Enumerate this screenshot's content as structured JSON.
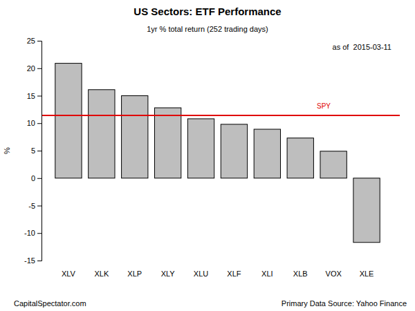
{
  "chart_data": {
    "type": "bar",
    "title": "US Sectors: ETF Performance",
    "subtitle": "1yr % total return (252 trading days)",
    "annotation": "as of  2015-03-11",
    "y_label": "%",
    "footer_left": "CapitalSpectator.com",
    "footer_right": "Primary Data Source: Yahoo Finance",
    "categories": [
      "XLV",
      "XLK",
      "XLP",
      "XLY",
      "XLU",
      "XLF",
      "XLI",
      "XLB",
      "VOX",
      "XLE"
    ],
    "values": [
      20.9,
      16.1,
      15.0,
      12.8,
      10.8,
      9.8,
      8.9,
      7.3,
      4.9,
      -11.7
    ],
    "color": "#bebebe",
    "ylim": [
      -15,
      25
    ],
    "yticks": [
      -15,
      -10,
      -5,
      0,
      5,
      10,
      15,
      20,
      25
    ],
    "grid": false,
    "reference_line": {
      "name": "SPY",
      "value": 11.4,
      "color": "#e00000"
    }
  }
}
